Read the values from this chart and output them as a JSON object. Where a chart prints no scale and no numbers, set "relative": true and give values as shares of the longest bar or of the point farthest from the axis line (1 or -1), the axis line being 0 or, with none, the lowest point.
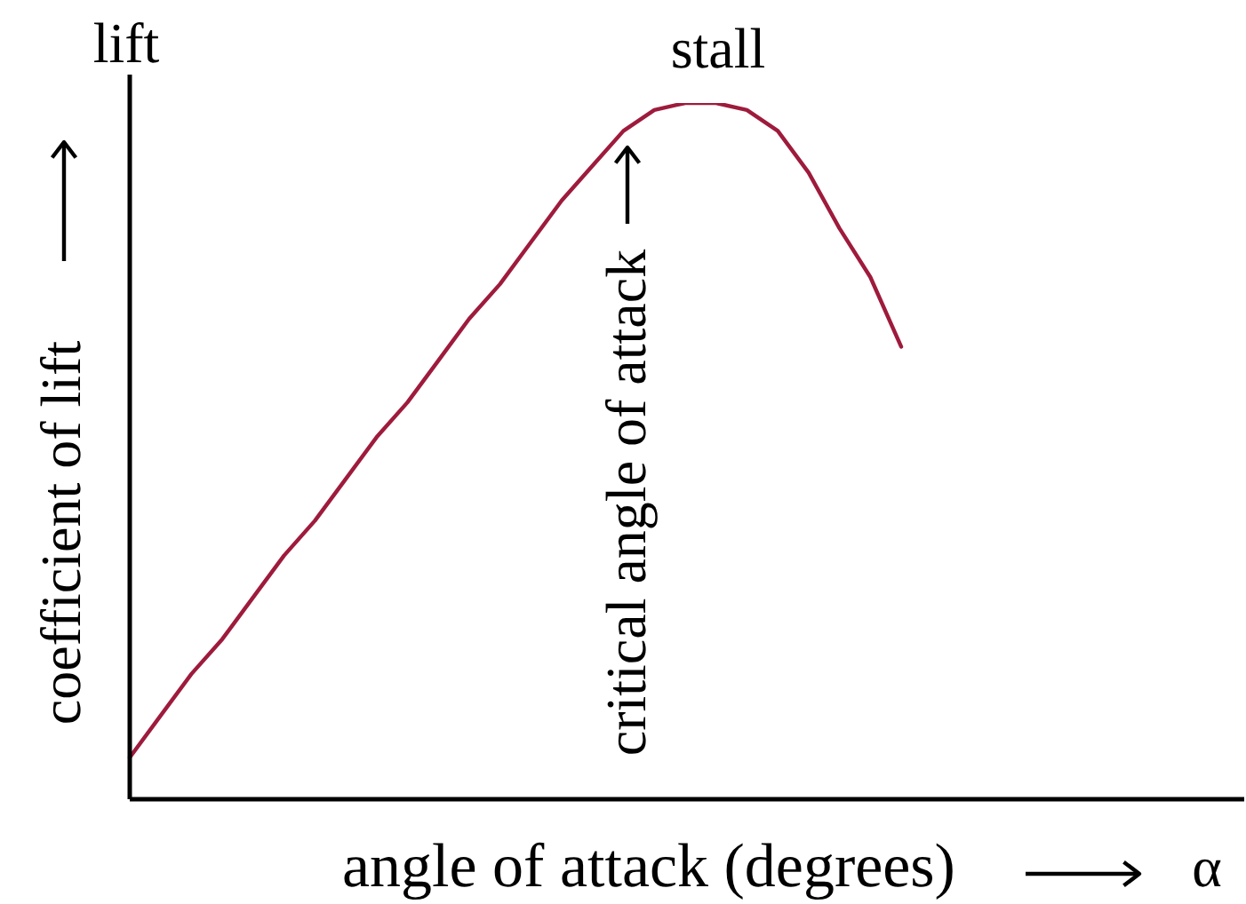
{
  "chart_data": {
    "type": "line",
    "relative": true,
    "xlabel": "angle of attack (degrees)",
    "ylabel": "coefficient of lift",
    "annotations": [
      "lift",
      "stall",
      "critical angle of attack",
      "α"
    ],
    "categories": [
      null,
      null,
      null,
      null,
      null,
      null,
      null,
      null,
      null,
      null,
      null,
      null,
      null,
      null,
      null,
      null,
      null,
      null,
      null,
      null,
      null,
      null,
      null,
      null,
      null,
      null
    ],
    "series": [
      {
        "color": "#9e1b3c",
        "values": [
          0.06,
          0.12,
          0.18,
          0.23,
          0.29,
          0.35,
          0.4,
          0.46,
          0.52,
          0.57,
          0.63,
          0.69,
          0.74,
          0.8,
          0.86,
          0.91,
          0.96,
          0.99,
          1.0,
          1.0,
          0.99,
          0.96,
          0.9,
          0.82,
          0.75,
          0.65
        ]
      }
    ]
  }
}
